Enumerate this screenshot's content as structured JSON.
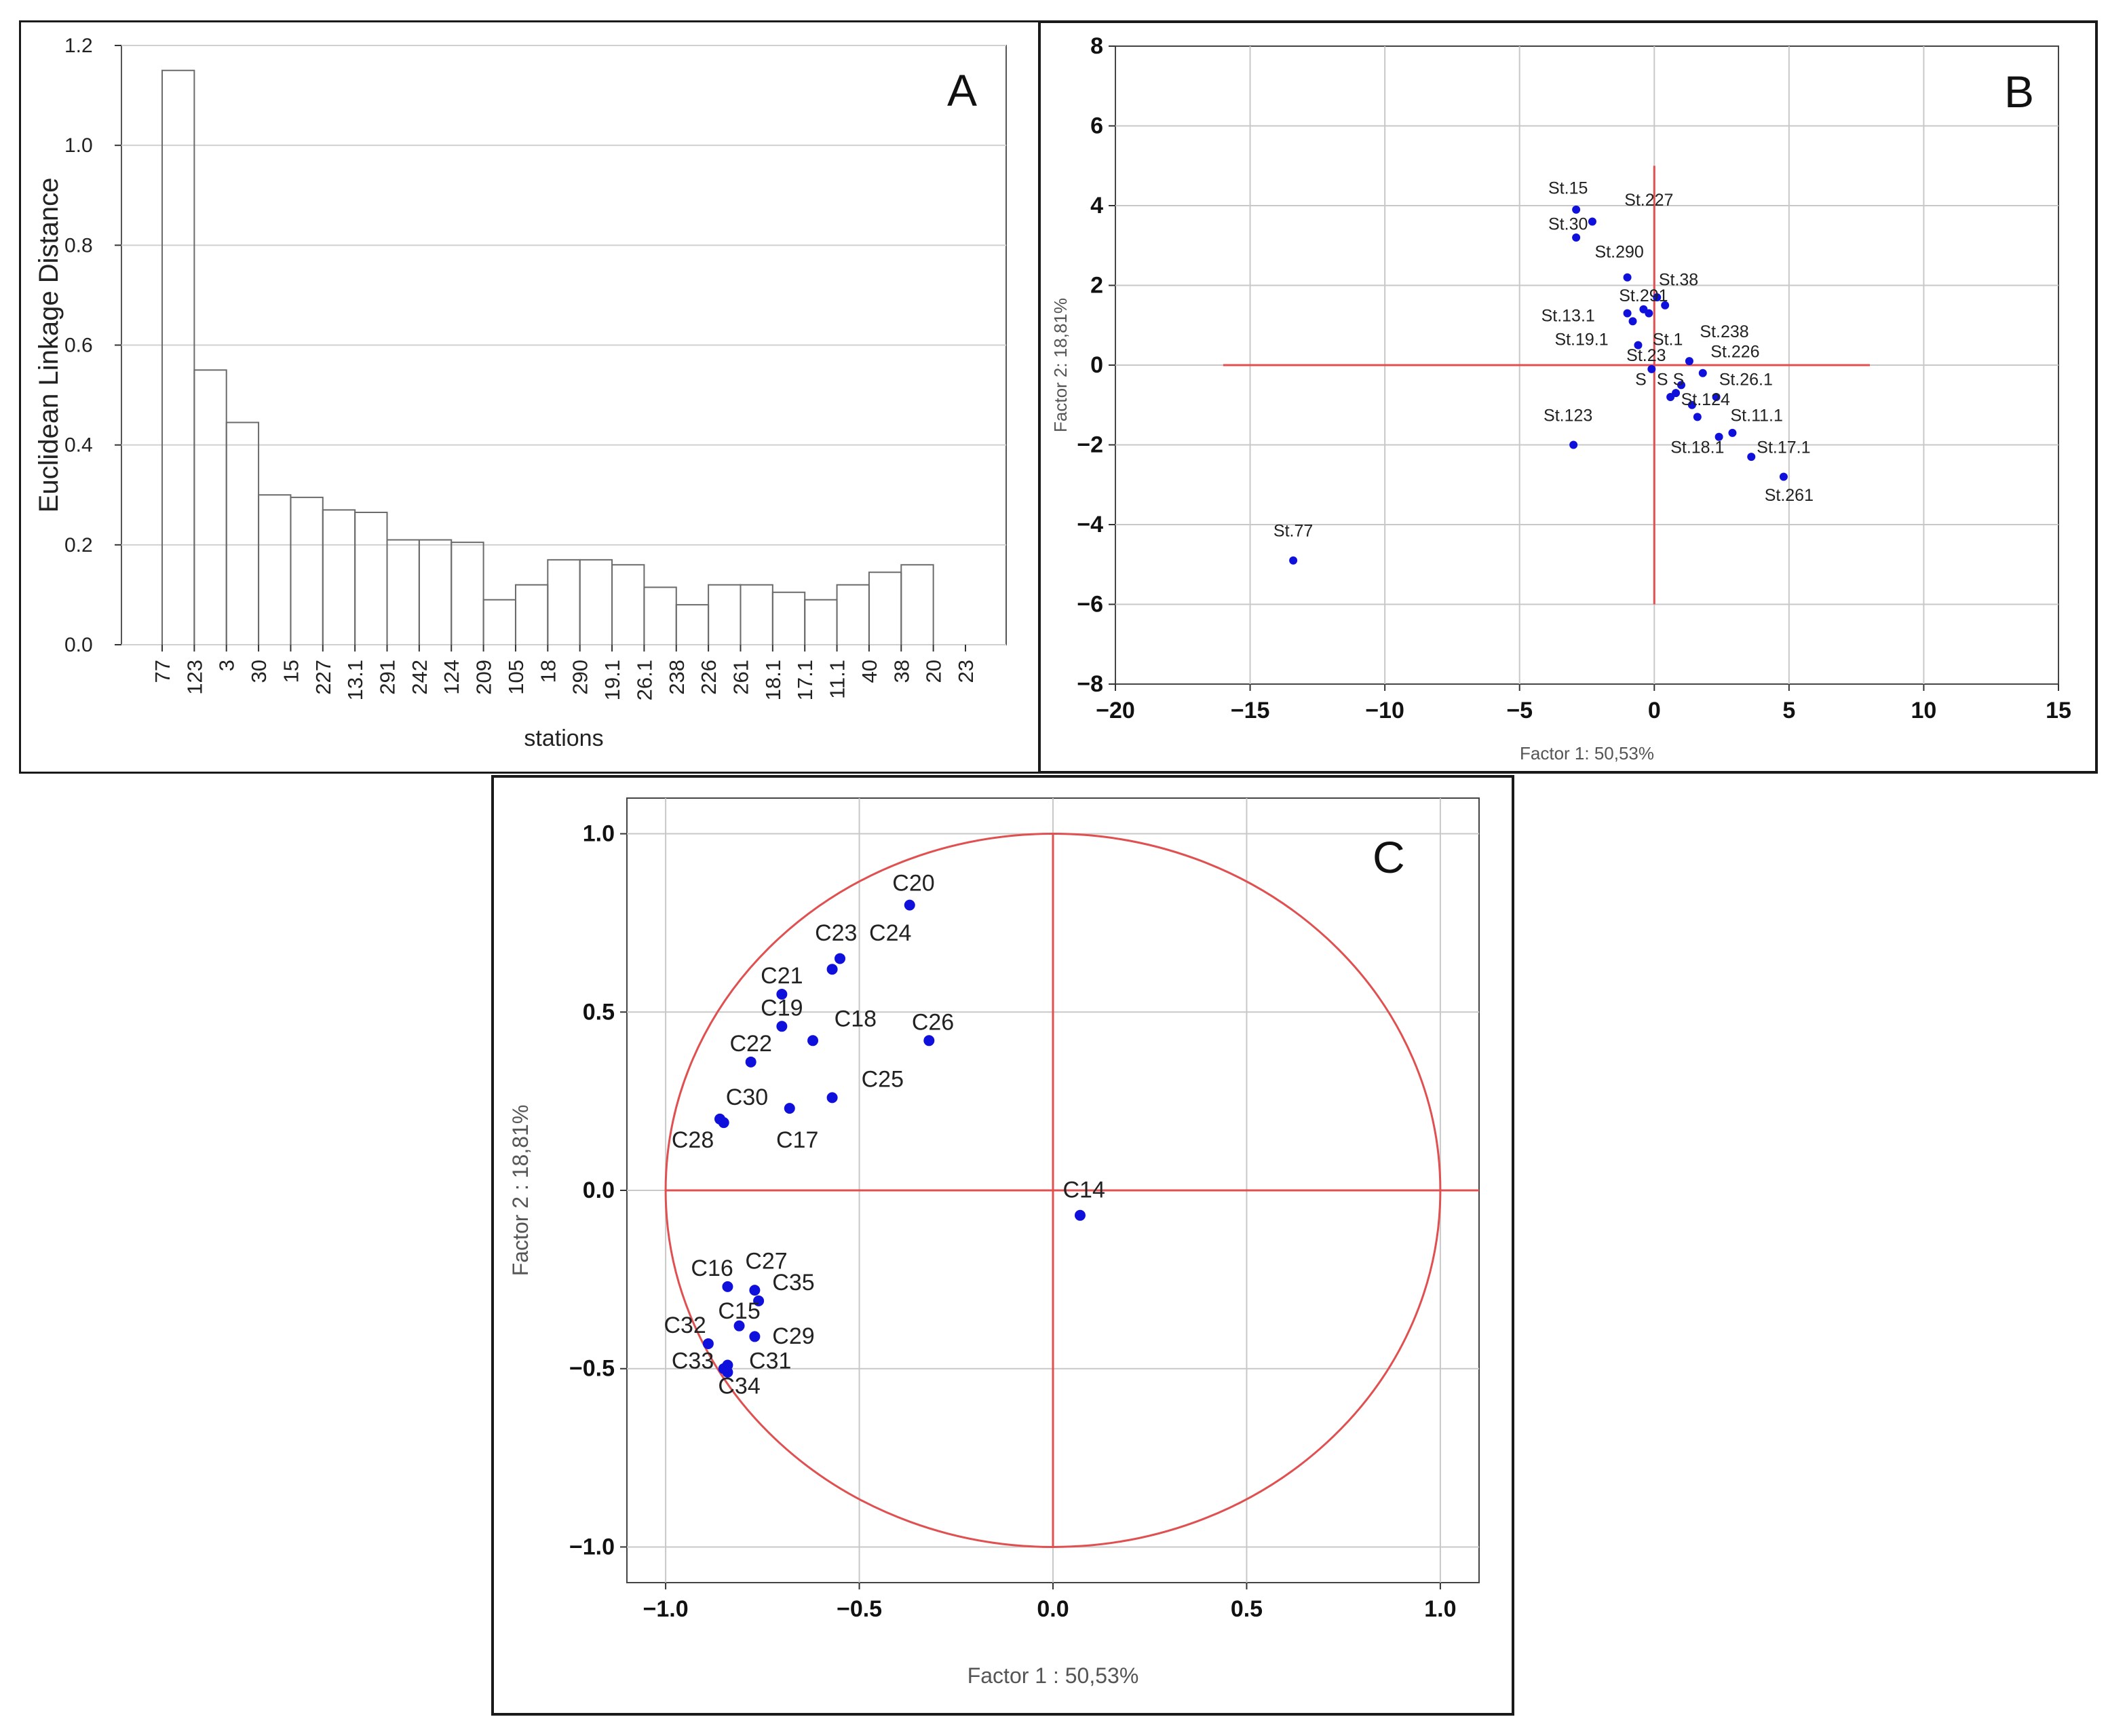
{
  "chart_data": [
    {
      "type": "dendrogram",
      "panel_letter": "A",
      "ylabel": "Euclidean Linkage Distance",
      "xlabel": "stations",
      "ylim": [
        0,
        1.2
      ],
      "yticks": [
        "0.0",
        "0.2",
        "0.4",
        "0.6",
        "0.8",
        "1.0",
        "1.2"
      ],
      "grid": "horizontal",
      "leaves": [
        "77",
        "123",
        "3",
        "30",
        "15",
        "227",
        "13.1",
        "291",
        "242",
        "124",
        "209",
        "105",
        "18",
        "290",
        "19.1",
        "26.1",
        "238",
        "226",
        "261",
        "18.1",
        "17.1",
        "11.1",
        "40",
        "38",
        "20",
        "23"
      ],
      "merges": [
        {
          "a": 0,
          "b": 1,
          "h": 1.15
        },
        {
          "a": 1,
          "b": 2,
          "h": 0.55
        },
        {
          "a": 2,
          "b": 3,
          "h": 0.445
        },
        {
          "a": 3,
          "b": 4,
          "h": 0.3
        },
        {
          "a": 4,
          "b": 5,
          "h": 0.295
        },
        {
          "a": 5,
          "b": 6,
          "h": 0.27
        },
        {
          "a": 6,
          "b": 7,
          "h": 0.265
        },
        {
          "a": 7,
          "b": 8,
          "h": 0.21
        },
        {
          "a": 8,
          "b": 9,
          "h": 0.21
        },
        {
          "a": 9,
          "b": 10,
          "h": 0.205
        },
        {
          "a": 10,
          "b": 11,
          "h": 0.09
        },
        {
          "a": 11,
          "b": 12,
          "h": 0.12
        },
        {
          "a": 12,
          "b": 13,
          "h": 0.17
        },
        {
          "a": 13,
          "b": 14,
          "h": 0.17
        },
        {
          "a": 14,
          "b": 15,
          "h": 0.16
        },
        {
          "a": 15,
          "b": 16,
          "h": 0.115
        },
        {
          "a": 16,
          "b": 17,
          "h": 0.08
        },
        {
          "a": 17,
          "b": 18,
          "h": 0.12
        },
        {
          "a": 18,
          "b": 19,
          "h": 0.12
        },
        {
          "a": 19,
          "b": 20,
          "h": 0.105
        },
        {
          "a": 20,
          "b": 21,
          "h": 0.09
        },
        {
          "a": 21,
          "b": 22,
          "h": 0.12
        },
        {
          "a": 22,
          "b": 23,
          "h": 0.145
        },
        {
          "a": 23,
          "b": 24,
          "h": 0.16
        }
      ]
    },
    {
      "type": "scatter",
      "panel_letter": "B",
      "xlabel": "Factor 1: 50,53%",
      "ylabel": "Factor 2: 18,81%",
      "xlim": [
        -20,
        15
      ],
      "ylim": [
        -8,
        8
      ],
      "xticks": [
        "−20",
        "−15",
        "−10",
        "−5",
        "0",
        "5",
        "10",
        "15"
      ],
      "yticks": [
        "−8",
        "−6",
        "−4",
        "−2",
        "0",
        "2",
        "4",
        "6",
        "8"
      ],
      "grid": true,
      "point_color": "#1010dd",
      "line_color": "#e05050",
      "points": [
        {
          "label": "St.15",
          "x": -2.9,
          "y": 3.9,
          "lx": -3.2,
          "ly": 4.3
        },
        {
          "label": "St.227",
          "x": -2.3,
          "y": 3.6,
          "lx": -0.2,
          "ly": 4.0
        },
        {
          "label": "St.30",
          "x": -2.9,
          "y": 3.2,
          "lx": -3.2,
          "ly": 3.4
        },
        {
          "label": "St.290",
          "x": -1.0,
          "y": 2.2,
          "lx": -1.3,
          "ly": 2.7
        },
        {
          "label": "St.38",
          "x": 0.1,
          "y": 1.7,
          "lx": 0.9,
          "ly": 2.0
        },
        {
          "label": "St.291",
          "x": -0.4,
          "y": 1.4,
          "lx": -0.4,
          "ly": 1.6
        },
        {
          "label": "St.13.1",
          "x": -0.8,
          "y": 1.1,
          "lx": -3.2,
          "ly": 1.1
        },
        {
          "label": "St.19.1",
          "x": -0.6,
          "y": 0.5,
          "lx": -2.7,
          "ly": 0.5
        },
        {
          "label": "St.238",
          "x": 1.3,
          "y": 0.1,
          "lx": 2.6,
          "ly": 0.7
        },
        {
          "label": "St.226",
          "x": 1.8,
          "y": -0.2,
          "lx": 3.0,
          "ly": 0.2
        },
        {
          "label": "St.23",
          "x": -0.1,
          "y": -0.1,
          "lx": -0.3,
          "ly": 0.1
        },
        {
          "label": "St.26.1",
          "x": 2.3,
          "y": -0.8,
          "lx": 3.4,
          "ly": -0.5
        },
        {
          "label": "St.124",
          "x": 1.4,
          "y": -1.0,
          "lx": 1.9,
          "ly": -1.0
        },
        {
          "label": "St.11.1",
          "x": 2.9,
          "y": -1.7,
          "lx": 3.8,
          "ly": -1.4
        },
        {
          "label": "St.18.1",
          "x": 2.4,
          "y": -1.8,
          "lx": 1.6,
          "ly": -2.2
        },
        {
          "label": "St.17.1",
          "x": 3.6,
          "y": -2.3,
          "lx": 4.8,
          "ly": -2.2
        },
        {
          "label": "St.261",
          "x": 4.8,
          "y": -2.8,
          "lx": 5.0,
          "ly": -3.4
        },
        {
          "label": "St.123",
          "x": -3.0,
          "y": -2.0,
          "lx": -3.2,
          "ly": -1.4
        },
        {
          "label": "St.77",
          "x": -13.4,
          "y": -4.9,
          "lx": -13.4,
          "ly": -4.3
        },
        {
          "label": "",
          "x": -0.2,
          "y": 1.3
        },
        {
          "label": "",
          "x": 0.4,
          "y": 1.5
        },
        {
          "label": "",
          "x": -1.0,
          "y": 1.3
        },
        {
          "label": "",
          "x": 0.8,
          "y": -0.7
        },
        {
          "label": "",
          "x": 0.6,
          "y": -0.8
        },
        {
          "label": "",
          "x": 1.0,
          "y": -0.5
        },
        {
          "label": "",
          "x": 1.6,
          "y": -1.3
        }
      ],
      "overlap_labels": [
        {
          "text": "St.1",
          "lx": 0.5,
          "ly": 0.5
        },
        {
          "text": "S",
          "lx": -0.5,
          "ly": -0.5
        },
        {
          "text": "S",
          "lx": 0.3,
          "ly": -0.5
        },
        {
          "text": "S",
          "lx": 0.9,
          "ly": -0.5
        }
      ],
      "ref_lines": {
        "h": {
          "y": 0,
          "x1": -16,
          "x2": 8
        },
        "v": {
          "x": 0,
          "y1": -6,
          "y2": 5
        }
      }
    },
    {
      "type": "scatter",
      "panel_letter": "C",
      "xlabel": "Factor 1 : 50,53%",
      "ylabel": "Factor 2 : 18,81%",
      "xlim": [
        -1.1,
        1.1
      ],
      "ylim": [
        -1.1,
        1.1
      ],
      "xticks": [
        "−1.0",
        "−0.5",
        "0.0",
        "0.5",
        "1.0"
      ],
      "yticks": [
        "−1.0",
        "−0.5",
        "0.0",
        "0.5",
        "1.0"
      ],
      "grid": true,
      "unit_circle": true,
      "point_color": "#1010dd",
      "line_color": "#e05050",
      "points": [
        {
          "label": "C20",
          "x": -0.37,
          "y": 0.8,
          "lx": -0.36,
          "ly": 0.84
        },
        {
          "label": "C23",
          "x": -0.57,
          "y": 0.62,
          "lx": -0.56,
          "ly": 0.7
        },
        {
          "label": "C24",
          "x": -0.55,
          "y": 0.65,
          "lx": -0.42,
          "ly": 0.7
        },
        {
          "label": "C21",
          "x": -0.7,
          "y": 0.55,
          "lx": -0.7,
          "ly": 0.58
        },
        {
          "label": "C19",
          "x": -0.7,
          "y": 0.46,
          "lx": -0.7,
          "ly": 0.49
        },
        {
          "label": "C18",
          "x": -0.62,
          "y": 0.42,
          "lx": -0.51,
          "ly": 0.46
        },
        {
          "label": "C26",
          "x": -0.32,
          "y": 0.42,
          "lx": -0.31,
          "ly": 0.45
        },
        {
          "label": "C22",
          "x": -0.78,
          "y": 0.36,
          "lx": -0.78,
          "ly": 0.39
        },
        {
          "label": "C25",
          "x": -0.57,
          "y": 0.26,
          "lx": -0.44,
          "ly": 0.29
        },
        {
          "label": "C30",
          "x": -0.86,
          "y": 0.2,
          "lx": -0.79,
          "ly": 0.24
        },
        {
          "label": "C28",
          "x": -0.85,
          "y": 0.19,
          "lx": -0.93,
          "ly": 0.12
        },
        {
          "label": "C17",
          "x": -0.68,
          "y": 0.23,
          "lx": -0.66,
          "ly": 0.12
        },
        {
          "label": "C14",
          "x": 0.07,
          "y": -0.07,
          "lx": 0.08,
          "ly": -0.02
        },
        {
          "label": "C16",
          "x": -0.84,
          "y": -0.27,
          "lx": -0.88,
          "ly": -0.24
        },
        {
          "label": "C27",
          "x": -0.77,
          "y": -0.28,
          "lx": -0.74,
          "ly": -0.22
        },
        {
          "label": "C35",
          "x": -0.76,
          "y": -0.31,
          "lx": -0.67,
          "ly": -0.28
        },
        {
          "label": "C15",
          "x": -0.81,
          "y": -0.38,
          "lx": -0.81,
          "ly": -0.36
        },
        {
          "label": "C29",
          "x": -0.77,
          "y": -0.41,
          "lx": -0.67,
          "ly": -0.43
        },
        {
          "label": "C32",
          "x": -0.89,
          "y": -0.43,
          "lx": -0.95,
          "ly": -0.4
        },
        {
          "label": "C31",
          "x": -0.84,
          "y": -0.49,
          "lx": -0.73,
          "ly": -0.5
        },
        {
          "label": "C33",
          "x": -0.85,
          "y": -0.5,
          "lx": -0.93,
          "ly": -0.5
        },
        {
          "label": "C34",
          "x": -0.84,
          "y": -0.51,
          "lx": -0.81,
          "ly": -0.57
        }
      ],
      "ref_lines": {
        "h": {
          "y": 0,
          "x1": -1.0,
          "x2": 1.1
        },
        "v": {
          "x": 0,
          "y1": -1.0,
          "y2": 1.0
        }
      }
    }
  ]
}
